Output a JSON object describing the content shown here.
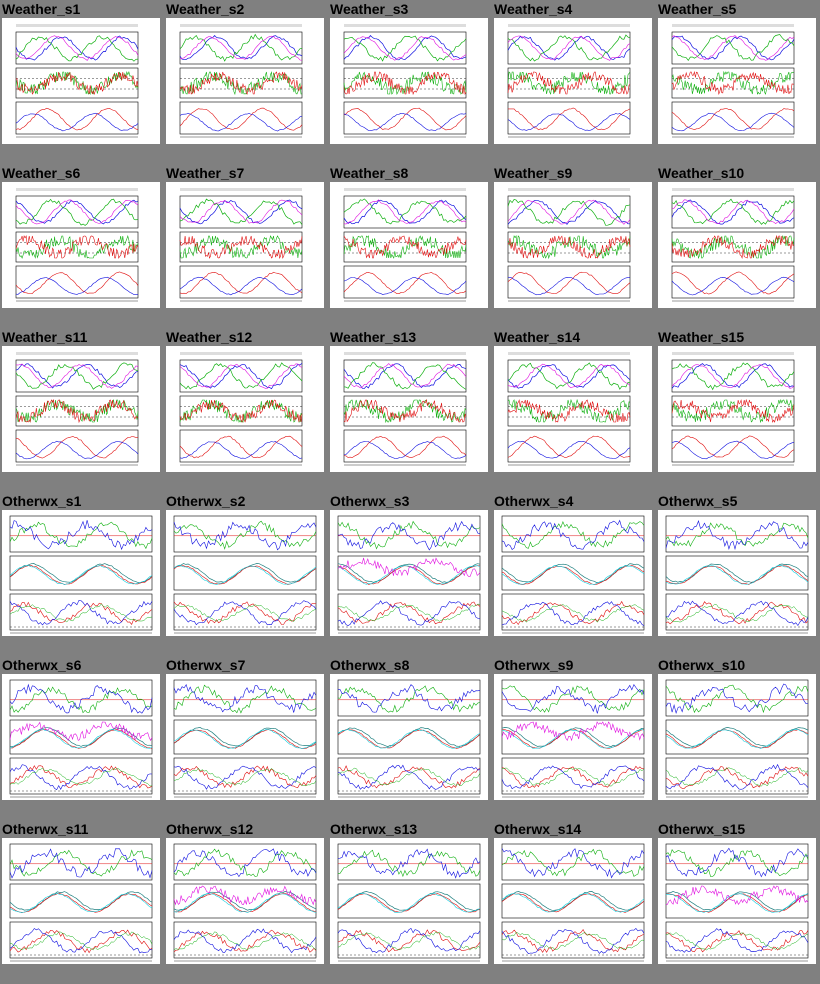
{
  "page": {
    "background": "#808080",
    "panel_background": "#ffffff"
  },
  "series_colors": {
    "red": "#e01010",
    "green": "#10b010",
    "blue": "#1010e0",
    "cyan": "#10d0e0",
    "magenta": "#e010e0",
    "teal": "#208080"
  },
  "thumbnails": [
    {
      "title": "Weather_s1",
      "kind": "weather"
    },
    {
      "title": "Weather_s2",
      "kind": "weather"
    },
    {
      "title": "Weather_s3",
      "kind": "weather"
    },
    {
      "title": "Weather_s4",
      "kind": "weather"
    },
    {
      "title": "Weather_s5",
      "kind": "weather"
    },
    {
      "title": "Weather_s6",
      "kind": "weather"
    },
    {
      "title": "Weather_s7",
      "kind": "weather"
    },
    {
      "title": "Weather_s8",
      "kind": "weather"
    },
    {
      "title": "Weather_s9",
      "kind": "weather"
    },
    {
      "title": "Weather_s10",
      "kind": "weather"
    },
    {
      "title": "Weather_s11",
      "kind": "weather"
    },
    {
      "title": "Weather_s12",
      "kind": "weather"
    },
    {
      "title": "Weather_s13",
      "kind": "weather"
    },
    {
      "title": "Weather_s14",
      "kind": "weather"
    },
    {
      "title": "Weather_s15",
      "kind": "weather"
    },
    {
      "title": "Otherwx_s1",
      "kind": "otherwx"
    },
    {
      "title": "Otherwx_s2",
      "kind": "otherwx"
    },
    {
      "title": "Otherwx_s3",
      "kind": "otherwx"
    },
    {
      "title": "Otherwx_s4",
      "kind": "otherwx"
    },
    {
      "title": "Otherwx_s5",
      "kind": "otherwx"
    },
    {
      "title": "Otherwx_s6",
      "kind": "otherwx"
    },
    {
      "title": "Otherwx_s7",
      "kind": "otherwx"
    },
    {
      "title": "Otherwx_s8",
      "kind": "otherwx"
    },
    {
      "title": "Otherwx_s9",
      "kind": "otherwx"
    },
    {
      "title": "Otherwx_s10",
      "kind": "otherwx"
    },
    {
      "title": "Otherwx_s11",
      "kind": "otherwx"
    },
    {
      "title": "Otherwx_s12",
      "kind": "otherwx"
    },
    {
      "title": "Otherwx_s13",
      "kind": "otherwx"
    },
    {
      "title": "Otherwx_s14",
      "kind": "otherwx"
    },
    {
      "title": "Otherwx_s15",
      "kind": "otherwx"
    }
  ]
}
